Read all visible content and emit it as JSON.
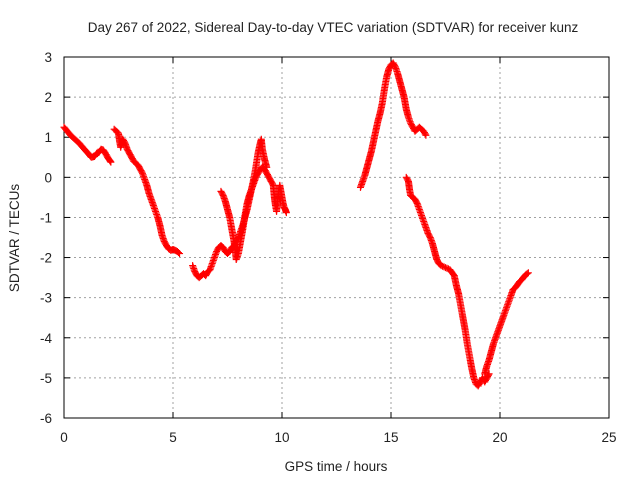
{
  "chart_data": {
    "type": "scatter",
    "title": "Day 267 of 2022, Sidereal Day-to-day VTEC variation (SDTVAR) for receiver kunz",
    "xlabel": "GPS time / hours",
    "ylabel": "SDTVAR / TECUs",
    "xlim": [
      0,
      25
    ],
    "ylim": [
      -6,
      3
    ],
    "xticks": [
      "0",
      "5",
      "10",
      "15",
      "20",
      "25"
    ],
    "yticks": [
      "-6",
      "-5",
      "-4",
      "-3",
      "-2",
      "-1",
      "0",
      "1",
      "2",
      "3"
    ],
    "grid": true,
    "marker": "plus",
    "series_color": "#ff0000",
    "segments": [
      [
        [
          0.0,
          1.25
        ],
        [
          0.15,
          1.15
        ],
        [
          0.3,
          1.05
        ],
        [
          0.5,
          0.95
        ],
        [
          0.7,
          0.85
        ],
        [
          0.9,
          0.72
        ],
        [
          1.1,
          0.6
        ],
        [
          1.25,
          0.5
        ],
        [
          1.4,
          0.52
        ],
        [
          1.5,
          0.6
        ],
        [
          1.6,
          0.62
        ],
        [
          1.7,
          0.7
        ],
        [
          1.8,
          0.68
        ],
        [
          1.9,
          0.6
        ],
        [
          2.0,
          0.5
        ],
        [
          2.1,
          0.42
        ],
        [
          2.15,
          0.38
        ]
      ],
      [
        [
          2.3,
          1.2
        ],
        [
          2.4,
          1.15
        ],
        [
          2.5,
          1.1
        ],
        [
          2.55,
          0.9
        ],
        [
          2.6,
          0.75
        ],
        [
          2.65,
          0.85
        ],
        [
          2.7,
          0.95
        ],
        [
          2.8,
          0.85
        ],
        [
          2.9,
          0.7
        ],
        [
          3.0,
          0.6
        ],
        [
          3.1,
          0.5
        ],
        [
          3.2,
          0.4
        ],
        [
          3.3,
          0.35
        ],
        [
          3.4,
          0.3
        ],
        [
          3.5,
          0.2
        ],
        [
          3.6,
          0.1
        ],
        [
          3.7,
          -0.05
        ],
        [
          3.8,
          -0.2
        ],
        [
          3.9,
          -0.4
        ],
        [
          4.0,
          -0.55
        ],
        [
          4.1,
          -0.7
        ],
        [
          4.2,
          -0.85
        ],
        [
          4.3,
          -1.0
        ],
        [
          4.4,
          -1.2
        ],
        [
          4.5,
          -1.45
        ],
        [
          4.6,
          -1.6
        ],
        [
          4.7,
          -1.7
        ],
        [
          4.8,
          -1.78
        ],
        [
          4.9,
          -1.82
        ],
        [
          5.0,
          -1.8
        ],
        [
          5.1,
          -1.82
        ],
        [
          5.2,
          -1.85
        ],
        [
          5.3,
          -1.9
        ]
      ],
      [
        [
          5.9,
          -2.2
        ],
        [
          6.0,
          -2.35
        ],
        [
          6.1,
          -2.45
        ],
        [
          6.2,
          -2.5
        ],
        [
          6.3,
          -2.45
        ],
        [
          6.4,
          -2.4
        ],
        [
          6.5,
          -2.45
        ],
        [
          6.6,
          -2.35
        ],
        [
          6.7,
          -2.3
        ],
        [
          6.8,
          -2.15
        ],
        [
          6.9,
          -2.0
        ],
        [
          7.0,
          -1.85
        ],
        [
          7.1,
          -1.75
        ],
        [
          7.2,
          -1.7
        ],
        [
          7.3,
          -1.75
        ],
        [
          7.4,
          -1.85
        ],
        [
          7.5,
          -1.9
        ],
        [
          7.6,
          -1.85
        ],
        [
          7.7,
          -1.75
        ],
        [
          7.8,
          -1.7
        ],
        [
          7.9,
          -1.6
        ],
        [
          8.0,
          -1.5
        ],
        [
          8.1,
          -1.35
        ],
        [
          8.2,
          -1.2
        ],
        [
          8.3,
          -1.0
        ],
        [
          8.4,
          -0.8
        ],
        [
          8.5,
          -0.55
        ],
        [
          8.6,
          -0.3
        ],
        [
          8.7,
          -0.05
        ],
        [
          8.8,
          0.25
        ],
        [
          8.9,
          0.6
        ],
        [
          9.0,
          0.85
        ],
        [
          9.05,
          0.95
        ],
        [
          9.1,
          0.7
        ],
        [
          9.2,
          0.45
        ],
        [
          9.3,
          0.25
        ]
      ],
      [
        [
          7.2,
          -0.35
        ],
        [
          7.3,
          -0.45
        ],
        [
          7.4,
          -0.6
        ],
        [
          7.5,
          -0.8
        ],
        [
          7.6,
          -1.0
        ],
        [
          7.7,
          -1.3
        ],
        [
          7.8,
          -1.6
        ],
        [
          7.85,
          -1.8
        ],
        [
          7.9,
          -2.05
        ],
        [
          8.0,
          -1.9
        ],
        [
          8.1,
          -1.6
        ],
        [
          8.2,
          -1.3
        ],
        [
          8.3,
          -0.95
        ],
        [
          8.4,
          -0.65
        ],
        [
          8.5,
          -0.45
        ],
        [
          8.6,
          -0.3
        ],
        [
          8.7,
          -0.15
        ],
        [
          8.8,
          0.0
        ],
        [
          8.9,
          0.1
        ],
        [
          9.0,
          0.2
        ],
        [
          9.1,
          0.25
        ],
        [
          9.2,
          0.2
        ],
        [
          9.3,
          0.1
        ],
        [
          9.4,
          0.0
        ],
        [
          9.5,
          -0.1
        ],
        [
          9.6,
          -0.2
        ],
        [
          9.65,
          -0.5
        ],
        [
          9.7,
          -0.7
        ],
        [
          9.75,
          -0.85
        ],
        [
          9.8,
          -0.6
        ],
        [
          9.85,
          -0.35
        ],
        [
          9.9,
          -0.2
        ],
        [
          9.95,
          -0.35
        ],
        [
          10.0,
          -0.5
        ],
        [
          10.05,
          -0.65
        ],
        [
          10.1,
          -0.75
        ],
        [
          10.15,
          -0.8
        ],
        [
          10.2,
          -0.88
        ]
      ],
      [
        [
          13.6,
          -0.25
        ],
        [
          13.7,
          -0.1
        ],
        [
          13.8,
          0.05
        ],
        [
          13.9,
          0.25
        ],
        [
          14.0,
          0.45
        ],
        [
          14.1,
          0.65
        ],
        [
          14.2,
          0.9
        ],
        [
          14.3,
          1.15
        ],
        [
          14.4,
          1.4
        ],
        [
          14.5,
          1.6
        ],
        [
          14.6,
          1.85
        ],
        [
          14.7,
          2.2
        ],
        [
          14.8,
          2.5
        ],
        [
          14.9,
          2.7
        ],
        [
          15.0,
          2.8
        ],
        [
          15.1,
          2.85
        ],
        [
          15.2,
          2.75
        ],
        [
          15.3,
          2.6
        ],
        [
          15.4,
          2.4
        ],
        [
          15.5,
          2.2
        ],
        [
          15.6,
          2.0
        ],
        [
          15.7,
          1.7
        ],
        [
          15.75,
          1.6
        ],
        [
          15.8,
          1.5
        ],
        [
          15.9,
          1.35
        ],
        [
          16.0,
          1.25
        ],
        [
          16.1,
          1.15
        ],
        [
          16.2,
          1.2
        ],
        [
          16.3,
          1.25
        ],
        [
          16.4,
          1.2
        ],
        [
          16.5,
          1.15
        ],
        [
          16.6,
          1.05
        ]
      ],
      [
        [
          15.7,
          0.0
        ],
        [
          15.8,
          -0.1
        ],
        [
          15.85,
          -0.3
        ],
        [
          15.9,
          -0.45
        ],
        [
          16.0,
          -0.5
        ],
        [
          16.1,
          -0.55
        ],
        [
          16.2,
          -0.65
        ],
        [
          16.3,
          -0.8
        ],
        [
          16.4,
          -0.95
        ],
        [
          16.5,
          -1.1
        ],
        [
          16.6,
          -1.25
        ],
        [
          16.7,
          -1.4
        ],
        [
          16.8,
          -1.5
        ],
        [
          16.9,
          -1.65
        ],
        [
          17.0,
          -1.85
        ],
        [
          17.1,
          -2.05
        ],
        [
          17.2,
          -2.15
        ],
        [
          17.3,
          -2.2
        ],
        [
          17.5,
          -2.25
        ],
        [
          17.7,
          -2.3
        ],
        [
          17.9,
          -2.45
        ],
        [
          18.0,
          -2.7
        ],
        [
          18.1,
          -2.9
        ],
        [
          18.2,
          -3.2
        ],
        [
          18.3,
          -3.5
        ],
        [
          18.4,
          -3.8
        ],
        [
          18.5,
          -4.15
        ],
        [
          18.6,
          -4.45
        ],
        [
          18.7,
          -4.75
        ],
        [
          18.8,
          -5.0
        ],
        [
          18.9,
          -5.15
        ],
        [
          19.0,
          -5.2
        ],
        [
          19.1,
          -5.1
        ],
        [
          19.2,
          -5.0
        ],
        [
          19.3,
          -5.1
        ],
        [
          19.4,
          -5.0
        ],
        [
          19.5,
          -4.9
        ]
      ],
      [
        [
          19.3,
          -4.9
        ],
        [
          19.4,
          -4.7
        ],
        [
          19.5,
          -4.55
        ],
        [
          19.6,
          -4.35
        ],
        [
          19.7,
          -4.15
        ],
        [
          19.8,
          -4.0
        ],
        [
          19.9,
          -3.85
        ],
        [
          20.0,
          -3.7
        ],
        [
          20.1,
          -3.55
        ],
        [
          20.2,
          -3.4
        ],
        [
          20.3,
          -3.25
        ],
        [
          20.4,
          -3.1
        ],
        [
          20.5,
          -2.95
        ],
        [
          20.6,
          -2.8
        ],
        [
          20.7,
          -2.75
        ],
        [
          20.8,
          -2.68
        ],
        [
          20.9,
          -2.6
        ],
        [
          21.0,
          -2.55
        ],
        [
          21.1,
          -2.48
        ],
        [
          21.2,
          -2.42
        ],
        [
          21.3,
          -2.38
        ]
      ]
    ]
  }
}
